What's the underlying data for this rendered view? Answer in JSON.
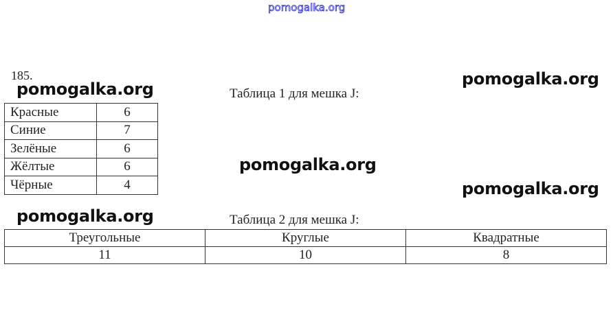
{
  "watermark_top": "pomogalka.org",
  "watermark": "pomogalka.org",
  "problem_number": "185.",
  "table1": {
    "caption": "Таблица 1 для мешка J:",
    "rows": [
      {
        "label": "Красные",
        "value": "6"
      },
      {
        "label": "Синие",
        "value": "7"
      },
      {
        "label": "Зелёные",
        "value": "6"
      },
      {
        "label": "Жёлтые",
        "value": "6"
      },
      {
        "label": "Чёрные",
        "value": "4"
      }
    ]
  },
  "table2": {
    "caption": "Таблица 2 для мешка J:",
    "headers": [
      "Треугольные",
      "Круглые",
      "Квадратные"
    ],
    "values": [
      "11",
      "10",
      "8"
    ]
  }
}
